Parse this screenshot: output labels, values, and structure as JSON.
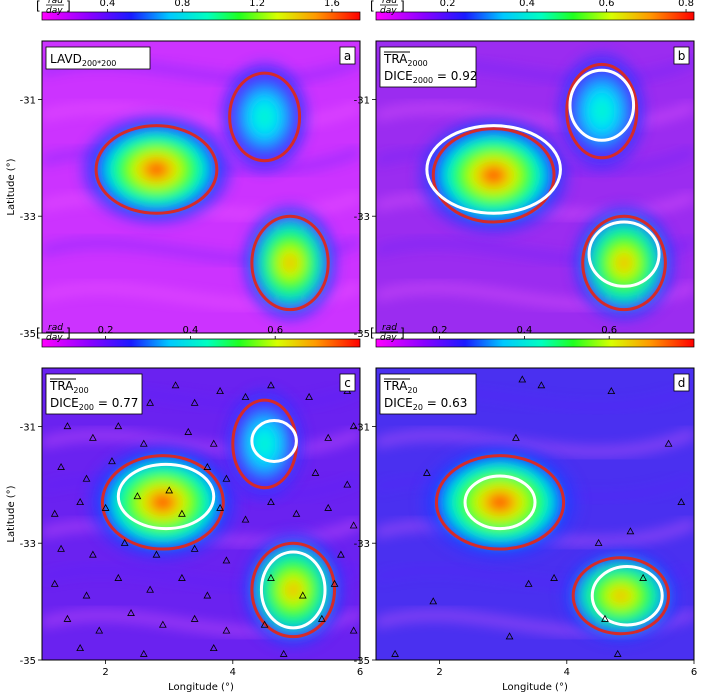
{
  "colorbar_unit": {
    "bracket_open": "[",
    "numerator": "rad",
    "denominator": "day",
    "bracket_close": "]"
  },
  "colors": {
    "contour_red": "#d42a2a",
    "contour_white": "#ffffff",
    "triangle": "#000000"
  },
  "axes": {
    "xlabel": "Longitude (°)",
    "ylabel": "Latitude (°)",
    "xticks": [
      2,
      4,
      6
    ],
    "yticks": [
      -31,
      -33,
      -35
    ],
    "xlim": [
      1,
      6
    ],
    "ylim": [
      -35,
      -30
    ]
  },
  "chart_data": [
    {
      "type": "heatmap",
      "panel": "a",
      "label_main": "LAVD",
      "label_sub": "200*200",
      "label_line2_main": "",
      "label_line2_sub": "",
      "label_line2_value": "",
      "colorbar_ticks": [
        0.4,
        0.8,
        1.2,
        1.6
      ],
      "colorbar_range": [
        0.05,
        1.75
      ],
      "red_contours": [
        {
          "center": [
            2.8,
            -32.2
          ],
          "radius": [
            0.95,
            0.75
          ]
        },
        {
          "center": [
            4.5,
            -31.3
          ],
          "radius": [
            0.55,
            0.75
          ]
        },
        {
          "center": [
            4.9,
            -33.8
          ],
          "radius": [
            0.6,
            0.8
          ]
        }
      ],
      "white_contours": [],
      "markers": []
    },
    {
      "type": "heatmap",
      "panel": "b",
      "label_main": "TRA",
      "label_sub": "2000",
      "label_line2_main": "DICE",
      "label_line2_sub": "2000",
      "label_line2_value": " = 0.92",
      "colorbar_ticks": [
        0.2,
        0.4,
        0.6,
        0.8
      ],
      "colorbar_range": [
        0.02,
        0.82
      ],
      "red_contours": [
        {
          "center": [
            2.85,
            -32.3
          ],
          "radius": [
            0.95,
            0.8
          ]
        },
        {
          "center": [
            4.55,
            -31.2
          ],
          "radius": [
            0.55,
            0.8
          ]
        },
        {
          "center": [
            4.9,
            -33.8
          ],
          "radius": [
            0.65,
            0.8
          ]
        }
      ],
      "white_contours": [
        {
          "center": [
            2.85,
            -32.2
          ],
          "radius": [
            1.05,
            0.75
          ]
        },
        {
          "center": [
            4.55,
            -31.1
          ],
          "radius": [
            0.5,
            0.6
          ]
        },
        {
          "center": [
            4.9,
            -33.65
          ],
          "radius": [
            0.55,
            0.55
          ]
        }
      ],
      "markers": []
    },
    {
      "type": "heatmap",
      "panel": "c",
      "label_main": "TRA",
      "label_sub": "200",
      "label_line2_main": "DICE",
      "label_line2_sub": "200",
      "label_line2_value": " = 0.77",
      "colorbar_ticks": [
        0.2,
        0.4,
        0.6
      ],
      "colorbar_range": [
        0.05,
        0.8
      ],
      "red_contours": [
        {
          "center": [
            2.9,
            -32.3
          ],
          "radius": [
            0.95,
            0.8
          ]
        },
        {
          "center": [
            4.5,
            -31.3
          ],
          "radius": [
            0.5,
            0.75
          ]
        },
        {
          "center": [
            4.95,
            -33.8
          ],
          "radius": [
            0.65,
            0.8
          ]
        }
      ],
      "white_contours": [
        {
          "center": [
            2.95,
            -32.2
          ],
          "radius": [
            0.75,
            0.55
          ]
        },
        {
          "center": [
            4.65,
            -31.25
          ],
          "radius": [
            0.35,
            0.35
          ]
        },
        {
          "center": [
            4.95,
            -33.8
          ],
          "radius": [
            0.5,
            0.65
          ]
        }
      ],
      "markers": [
        [
          1.2,
          -30.3
        ],
        [
          1.6,
          -30.5
        ],
        [
          1.9,
          -30.7
        ],
        [
          2.3,
          -30.4
        ],
        [
          2.7,
          -30.6
        ],
        [
          3.1,
          -30.3
        ],
        [
          3.4,
          -30.6
        ],
        [
          3.8,
          -30.4
        ],
        [
          4.2,
          -30.5
        ],
        [
          4.6,
          -30.3
        ],
        [
          5.2,
          -30.5
        ],
        [
          5.8,
          -30.4
        ],
        [
          1.4,
          -31.0
        ],
        [
          1.8,
          -31.2
        ],
        [
          2.2,
          -31.0
        ],
        [
          2.6,
          -31.3
        ],
        [
          3.3,
          -31.1
        ],
        [
          3.7,
          -31.3
        ],
        [
          5.5,
          -31.2
        ],
        [
          5.9,
          -31.0
        ],
        [
          1.3,
          -31.7
        ],
        [
          1.7,
          -31.9
        ],
        [
          2.1,
          -31.6
        ],
        [
          3.6,
          -31.7
        ],
        [
          3.9,
          -31.9
        ],
        [
          5.3,
          -31.8
        ],
        [
          5.8,
          -32.0
        ],
        [
          1.2,
          -32.5
        ],
        [
          1.6,
          -32.3
        ],
        [
          2.0,
          -32.4
        ],
        [
          2.5,
          -32.2
        ],
        [
          3.0,
          -32.1
        ],
        [
          3.2,
          -32.5
        ],
        [
          3.8,
          -32.4
        ],
        [
          4.2,
          -32.6
        ],
        [
          4.6,
          -32.3
        ],
        [
          5.0,
          -32.5
        ],
        [
          5.5,
          -32.4
        ],
        [
          5.9,
          -32.7
        ],
        [
          1.3,
          -33.1
        ],
        [
          1.8,
          -33.2
        ],
        [
          2.3,
          -33.0
        ],
        [
          2.8,
          -33.2
        ],
        [
          3.4,
          -33.1
        ],
        [
          3.9,
          -33.3
        ],
        [
          5.7,
          -33.2
        ],
        [
          1.2,
          -33.7
        ],
        [
          1.7,
          -33.9
        ],
        [
          2.2,
          -33.6
        ],
        [
          2.7,
          -33.8
        ],
        [
          3.2,
          -33.6
        ],
        [
          3.6,
          -33.9
        ],
        [
          4.6,
          -33.6
        ],
        [
          5.1,
          -33.9
        ],
        [
          5.6,
          -33.7
        ],
        [
          1.4,
          -34.3
        ],
        [
          1.9,
          -34.5
        ],
        [
          2.4,
          -34.2
        ],
        [
          2.9,
          -34.4
        ],
        [
          3.4,
          -34.3
        ],
        [
          3.9,
          -34.5
        ],
        [
          4.5,
          -34.4
        ],
        [
          5.4,
          -34.3
        ],
        [
          5.9,
          -34.5
        ],
        [
          1.6,
          -34.8
        ],
        [
          2.6,
          -34.9
        ],
        [
          3.7,
          -34.8
        ],
        [
          4.8,
          -34.9
        ]
      ]
    },
    {
      "type": "heatmap",
      "panel": "d",
      "label_main": "TRA",
      "label_sub": "20",
      "label_line2_main": "DICE",
      "label_line2_sub": "20",
      "label_line2_value": " = 0.63",
      "colorbar_ticks": [
        0.2,
        0.4,
        0.6
      ],
      "colorbar_range": [
        0.05,
        0.8
      ],
      "red_contours": [
        {
          "center": [
            2.95,
            -32.3
          ],
          "radius": [
            1.0,
            0.8
          ]
        },
        {
          "center": [
            4.85,
            -33.9
          ],
          "radius": [
            0.75,
            0.65
          ]
        }
      ],
      "white_contours": [
        {
          "center": [
            2.95,
            -32.3
          ],
          "radius": [
            0.55,
            0.45
          ]
        },
        {
          "center": [
            4.95,
            -33.9
          ],
          "radius": [
            0.55,
            0.5
          ]
        }
      ],
      "markers": [
        [
          2.2,
          -30.2
        ],
        [
          3.3,
          -30.2
        ],
        [
          3.6,
          -30.3
        ],
        [
          3.2,
          -31.2
        ],
        [
          4.7,
          -30.4
        ],
        [
          1.8,
          -31.8
        ],
        [
          5.6,
          -31.3
        ],
        [
          5.0,
          -32.8
        ],
        [
          4.5,
          -33.0
        ],
        [
          3.4,
          -33.7
        ],
        [
          3.8,
          -33.6
        ],
        [
          1.9,
          -34.0
        ],
        [
          5.2,
          -33.6
        ],
        [
          4.6,
          -34.3
        ],
        [
          3.1,
          -34.6
        ],
        [
          4.8,
          -34.9
        ],
        [
          5.8,
          -32.3
        ],
        [
          1.3,
          -34.9
        ]
      ]
    }
  ]
}
